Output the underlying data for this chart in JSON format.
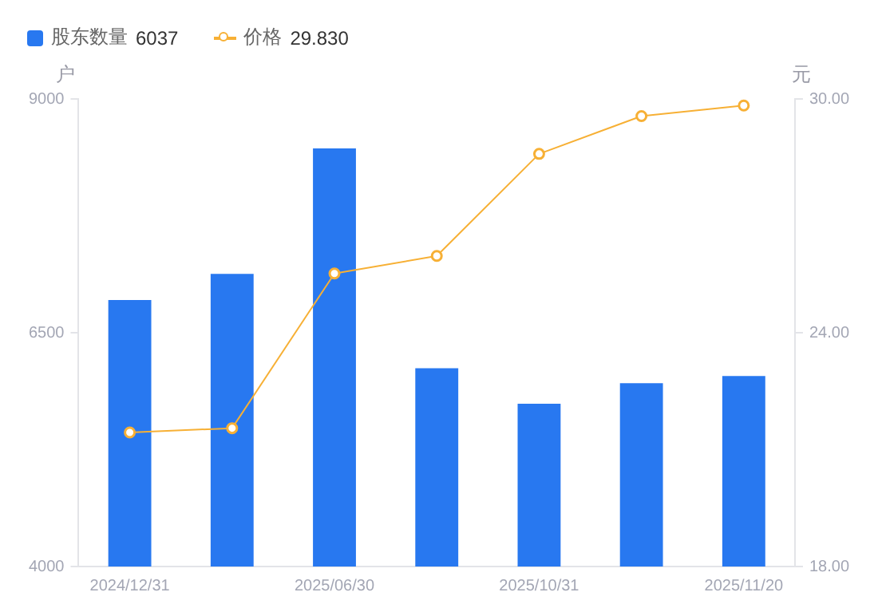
{
  "chart_data": {
    "type": "bar",
    "ylabel": "户",
    "y2label": "元",
    "categories": [
      "2024/12/31",
      null,
      "2025/06/30",
      null,
      "2025/10/31",
      null,
      "2025/11/20"
    ],
    "series": [
      {
        "name": "股东数量",
        "color": "#2878f0",
        "values": [
          6850,
          7130,
          8470,
          6120,
          5740,
          5960,
          6037
        ]
      },
      {
        "name": "价格",
        "type": "line",
        "axis": "y2",
        "color": "#f7b035",
        "values": [
          21.44,
          21.55,
          25.52,
          25.97,
          28.59,
          29.56,
          29.83
        ]
      }
    ],
    "annotations": [
      "6037",
      "29.830"
    ],
    "ylim": [
      4000,
      9000
    ],
    "yticks": [
      4000,
      6500,
      9000
    ],
    "y2lim": [
      18,
      30
    ],
    "y2ticks": [
      {
        "value": 18,
        "label": "18.00"
      },
      {
        "value": 24,
        "label": "24.00"
      },
      {
        "value": 30,
        "label": "30.00"
      }
    ],
    "grid": false,
    "legend": "top left",
    "marker": "circle",
    "line_style": "solid"
  }
}
